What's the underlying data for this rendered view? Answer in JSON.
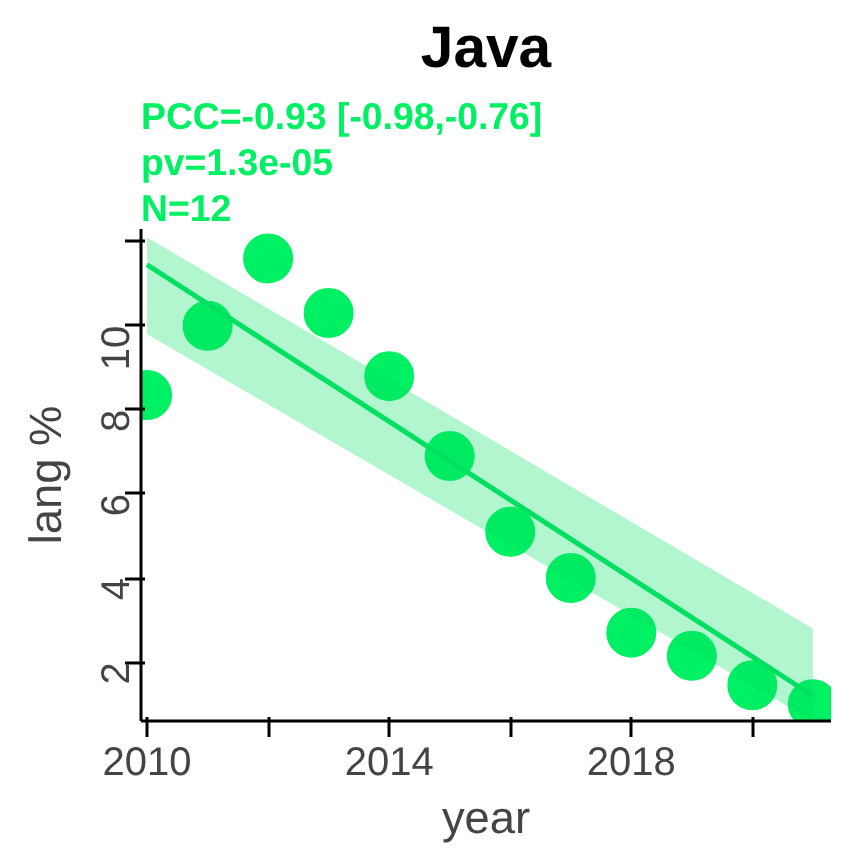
{
  "chart_data": {
    "type": "scatter",
    "title": "Java",
    "xlabel": "year",
    "ylabel": "lang %",
    "x": [
      2010,
      2011,
      2012,
      2013,
      2014,
      2015,
      2016,
      2017,
      2018,
      2019,
      2020,
      2021
    ],
    "series": [
      {
        "color": "#00f064",
        "values": [
          8.35,
          10.0,
          11.6,
          10.3,
          8.8,
          6.9,
          5.1,
          4.0,
          2.7,
          2.15,
          1.45,
          1.0
        ]
      },
      {
        "type": "line",
        "marker": "none",
        "color": "#00e060",
        "x": [
          2010,
          2021
        ],
        "values": [
          11.45,
          1.2
        ],
        "lower": [
          9.8,
          0.6
        ],
        "upper": [
          12.1,
          2.8
        ]
      }
    ],
    "annotations": [
      "PCC=-0.93 [-0.98,-0.76]",
      "pv=1.3e-05",
      "N=12"
    ],
    "xlim": [
      2009.9,
      2021.3
    ],
    "ylim": [
      0.6,
      12.3
    ],
    "xticks": [
      2010,
      {
        "value": 2012,
        "label": null
      },
      2014,
      {
        "value": 2016,
        "label": null
      },
      2018,
      {
        "value": 2020,
        "label": null
      }
    ],
    "yticks": [
      2,
      4,
      6,
      8,
      10,
      {
        "value": 12,
        "label": null
      }
    ],
    "grid": false,
    "marker": "circle"
  }
}
